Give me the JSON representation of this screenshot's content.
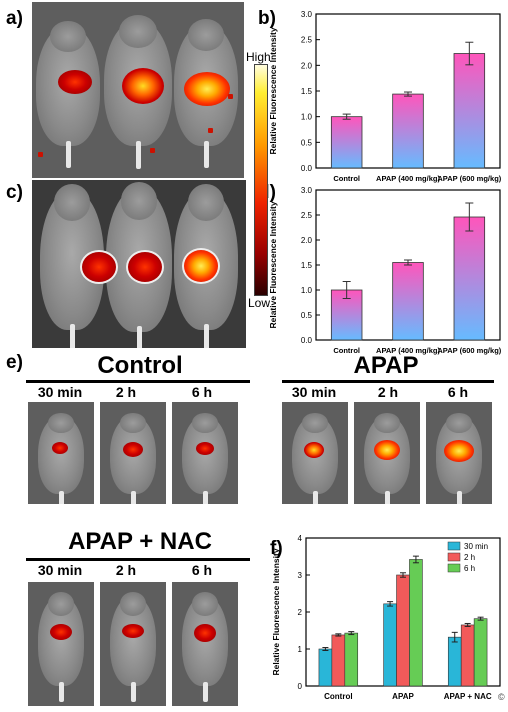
{
  "panels": {
    "a": "a)",
    "b": "b)",
    "c": "c)",
    "d": "d)",
    "e": "e)",
    "f": "f)"
  },
  "colorbar": {
    "high": "High",
    "low": "Low"
  },
  "groups": {
    "control": "Control",
    "apap": "APAP",
    "apap_nac": "APAP + NAC"
  },
  "times": [
    "30 min",
    "2 h",
    "6 h"
  ],
  "corner_mark": "©",
  "chart_data": [
    {
      "type": "bar",
      "panel": "b",
      "categories": [
        "Control",
        "APAP (400 mg/kg)",
        "APAP (600 mg/kg)"
      ],
      "values": [
        1.0,
        1.44,
        2.23
      ],
      "errors": [
        0.05,
        0.04,
        0.22
      ],
      "ylabel": "Relative Fluorescence Intensity",
      "ylim": [
        0,
        3.0
      ],
      "yticks": [
        "0.0",
        "0.5",
        "1.0",
        "1.5",
        "2.0",
        "2.5",
        "3.0"
      ],
      "bar_gradient": [
        "#ff55bb",
        "#66bbff"
      ]
    },
    {
      "type": "bar",
      "panel": "d",
      "categories": [
        "Control",
        "APAP (400 mg/kg)",
        "APAP (600 mg/kg)"
      ],
      "values": [
        1.0,
        1.55,
        2.46
      ],
      "errors": [
        0.17,
        0.05,
        0.28
      ],
      "ylabel": "Relative Fluorescence Intensity",
      "ylim": [
        0,
        3.0
      ],
      "yticks": [
        "0.0",
        "0.5",
        "1.0",
        "1.5",
        "2.0",
        "2.5",
        "3.0"
      ],
      "bar_gradient": [
        "#ff55bb",
        "#66bbff"
      ]
    },
    {
      "type": "bar",
      "panel": "f",
      "categories": [
        "Control",
        "APAP",
        "APAP + NAC"
      ],
      "series": [
        {
          "name": "30 min",
          "color": "#29b6d8",
          "values": [
            1.0,
            2.22,
            1.32
          ],
          "errors": [
            0.04,
            0.06,
            0.13
          ]
        },
        {
          "name": "2 h",
          "color": "#f25a5a",
          "values": [
            1.38,
            3.0,
            1.65
          ],
          "errors": [
            0.03,
            0.06,
            0.04
          ]
        },
        {
          "name": "6 h",
          "color": "#66cc55",
          "values": [
            1.43,
            3.42,
            1.82
          ],
          "errors": [
            0.04,
            0.09,
            0.04
          ]
        }
      ],
      "ylabel": "Relative Fluorescence Intensity",
      "ylim": [
        0,
        4
      ],
      "yticks": [
        "0",
        "1",
        "2",
        "3",
        "4"
      ],
      "legend": "top-right"
    }
  ]
}
